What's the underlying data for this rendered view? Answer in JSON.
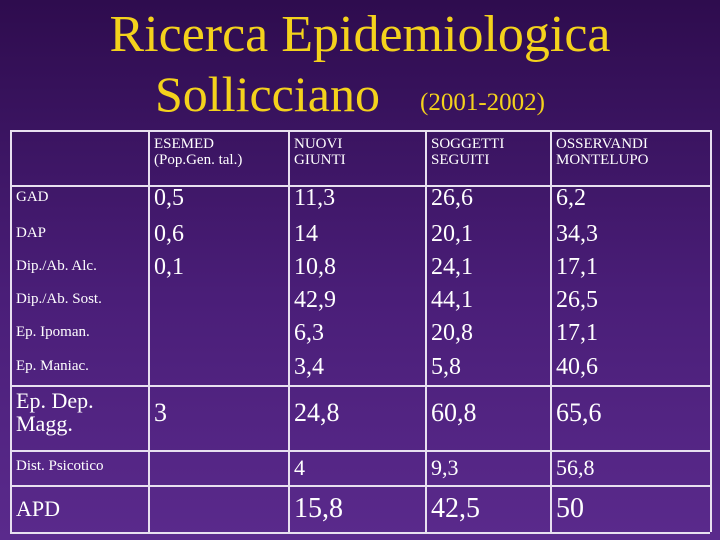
{
  "title": "Ricerca Epidemiologica",
  "subtitle": "Sollicciano",
  "period": "(2001-2002)",
  "table": {
    "header": [
      null,
      "ESEMED\n(Pop.Gen. tal.)",
      "NUOVI\nGIUNTI",
      "SOGGETTI\nSEGUITI",
      "OSSERVANDI\nMONTELUPO"
    ],
    "rows": [
      [
        "GAD",
        "0,5",
        "11,3",
        "26,6",
        "6,2"
      ],
      [
        "DAP",
        "0,6",
        "14",
        "20,1",
        "34,3"
      ],
      [
        "Dip./Ab. Alc.",
        "0,1",
        "10,8",
        "24,1",
        "17,1"
      ],
      [
        "Dip./Ab. Sost.",
        null,
        "42,9",
        "44,1",
        "26,5"
      ],
      [
        "Ep. Ipoman.",
        null,
        "6,3",
        "20,8",
        "17,1"
      ],
      [
        "Ep. Maniac.",
        null,
        "3,4",
        "5,8",
        "40,6"
      ],
      [
        "Ep. Dep. Magg.",
        "3",
        "24,8",
        "60,8",
        "65,6"
      ],
      [
        "Dist. Psicotico",
        null,
        "4",
        "9,3",
        "56,8"
      ],
      [
        "APD",
        null,
        "15,8",
        "42,5",
        "50"
      ]
    ]
  }
}
